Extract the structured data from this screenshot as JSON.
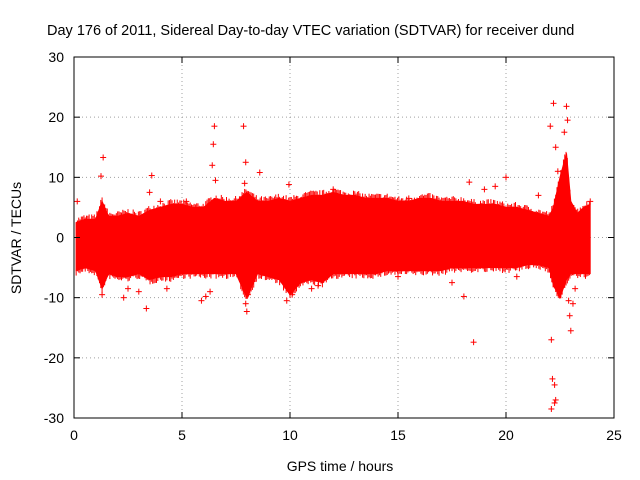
{
  "chart_data": {
    "type": "scatter",
    "title": "Day 176 of 2011, Sidereal Day-to-day VTEC variation (SDTVAR) for receiver dund",
    "xlabel": "GPS time / hours",
    "ylabel": "SDTVAR / TECUs",
    "xlim": [
      0,
      25
    ],
    "ylim": [
      -30,
      30
    ],
    "x_ticks": [
      0,
      5,
      10,
      15,
      20,
      25
    ],
    "y_ticks": [
      -30,
      -20,
      -10,
      0,
      10,
      20,
      30
    ],
    "x_tick_labels": [
      "0",
      "5",
      "10",
      "15",
      "20",
      "25"
    ],
    "y_tick_labels": [
      "-30",
      "-20",
      "-10",
      "0",
      "10",
      "20",
      "30"
    ],
    "grid": true,
    "marker": "+",
    "color": "#ff0000",
    "series": [
      {
        "name": "SDTVAR",
        "band": {
          "description": "dense scatter envelope (approx. min/max per time)",
          "x": [
            0.1,
            0.5,
            1.0,
            1.3,
            1.6,
            2.0,
            2.5,
            3.0,
            3.5,
            4.0,
            4.5,
            5.0,
            5.5,
            6.0,
            6.5,
            7.0,
            7.5,
            8.0,
            8.5,
            9.0,
            9.5,
            10.0,
            10.5,
            11.0,
            11.5,
            12.0,
            12.5,
            13.0,
            13.5,
            14.0,
            14.5,
            15.0,
            15.5,
            16.0,
            16.5,
            17.0,
            17.5,
            18.0,
            18.5,
            19.0,
            19.5,
            20.0,
            20.5,
            21.0,
            21.5,
            22.0,
            22.2,
            22.5,
            22.8,
            23.0,
            23.3,
            23.6,
            23.9
          ],
          "upper": [
            2.5,
            3.0,
            3.0,
            6.0,
            3.5,
            3.5,
            4.0,
            3.5,
            4.5,
            5.0,
            5.5,
            5.5,
            5.0,
            5.0,
            6.5,
            6.0,
            6.0,
            7.5,
            6.0,
            6.0,
            6.5,
            6.0,
            6.5,
            7.0,
            7.0,
            7.5,
            7.0,
            7.0,
            6.5,
            6.5,
            6.5,
            6.0,
            6.0,
            6.5,
            6.5,
            6.0,
            6.0,
            6.0,
            5.5,
            5.5,
            5.5,
            5.0,
            5.0,
            4.5,
            4.0,
            3.5,
            5.0,
            10.0,
            14.0,
            6.0,
            4.0,
            5.0,
            5.5
          ],
          "lower": [
            -5.5,
            -5.0,
            -5.5,
            -8.5,
            -6.0,
            -6.5,
            -6.5,
            -6.0,
            -7.0,
            -6.5,
            -6.5,
            -6.0,
            -6.0,
            -6.0,
            -6.0,
            -6.0,
            -6.0,
            -10.0,
            -6.0,
            -6.5,
            -7.0,
            -9.5,
            -7.5,
            -7.0,
            -7.5,
            -6.0,
            -6.0,
            -6.0,
            -6.0,
            -6.0,
            -5.5,
            -5.5,
            -5.5,
            -5.5,
            -5.5,
            -5.5,
            -5.0,
            -5.0,
            -5.0,
            -5.0,
            -5.0,
            -5.0,
            -5.0,
            -4.5,
            -4.5,
            -5.0,
            -8.0,
            -10.0,
            -7.0,
            -6.0,
            -6.0,
            -6.0,
            -6.0
          ]
        },
        "outliers": [
          [
            0.15,
            6.0
          ],
          [
            1.35,
            13.3
          ],
          [
            1.25,
            10.2
          ],
          [
            1.3,
            -9.5
          ],
          [
            2.3,
            -10.0
          ],
          [
            2.5,
            -8.5
          ],
          [
            3.0,
            -9.0
          ],
          [
            3.35,
            -11.8
          ],
          [
            3.6,
            10.3
          ],
          [
            3.5,
            7.5
          ],
          [
            4.0,
            6.0
          ],
          [
            4.3,
            -8.5
          ],
          [
            5.2,
            6.0
          ],
          [
            5.9,
            -10.5
          ],
          [
            6.1,
            -9.8
          ],
          [
            6.3,
            -9.0
          ],
          [
            6.5,
            18.5
          ],
          [
            6.45,
            15.5
          ],
          [
            6.4,
            12.0
          ],
          [
            6.55,
            9.5
          ],
          [
            7.85,
            18.5
          ],
          [
            7.95,
            12.5
          ],
          [
            7.9,
            9.0
          ],
          [
            7.95,
            -11.0
          ],
          [
            8.0,
            -12.3
          ],
          [
            8.05,
            -9.5
          ],
          [
            8.6,
            10.8
          ],
          [
            9.85,
            -10.5
          ],
          [
            9.95,
            8.8
          ],
          [
            10.1,
            -9.5
          ],
          [
            11.0,
            -8.5
          ],
          [
            11.3,
            -8.0
          ],
          [
            12.0,
            8.0
          ],
          [
            15.5,
            6.5
          ],
          [
            15.0,
            -6.5
          ],
          [
            16.2,
            6.0
          ],
          [
            17.5,
            -7.5
          ],
          [
            18.05,
            -9.8
          ],
          [
            18.3,
            9.2
          ],
          [
            18.5,
            -17.4
          ],
          [
            19.0,
            8.0
          ],
          [
            19.5,
            8.5
          ],
          [
            20.0,
            10.0
          ],
          [
            20.5,
            -6.5
          ],
          [
            21.5,
            7.0
          ],
          [
            22.05,
            18.5
          ],
          [
            22.2,
            22.3
          ],
          [
            22.1,
            -17.0
          ],
          [
            22.15,
            -23.5
          ],
          [
            22.25,
            -24.5
          ],
          [
            22.25,
            -27.5
          ],
          [
            22.3,
            -27.0
          ],
          [
            22.1,
            -28.5
          ],
          [
            22.3,
            15.0
          ],
          [
            22.4,
            11.0
          ],
          [
            22.5,
            8.0
          ],
          [
            22.8,
            21.8
          ],
          [
            22.85,
            19.5
          ],
          [
            22.7,
            17.5
          ],
          [
            22.9,
            -10.5
          ],
          [
            22.95,
            -13.0
          ],
          [
            23.0,
            -15.5
          ],
          [
            23.1,
            -11.0
          ],
          [
            23.2,
            -8.5
          ],
          [
            23.9,
            6.0
          ]
        ]
      }
    ]
  }
}
